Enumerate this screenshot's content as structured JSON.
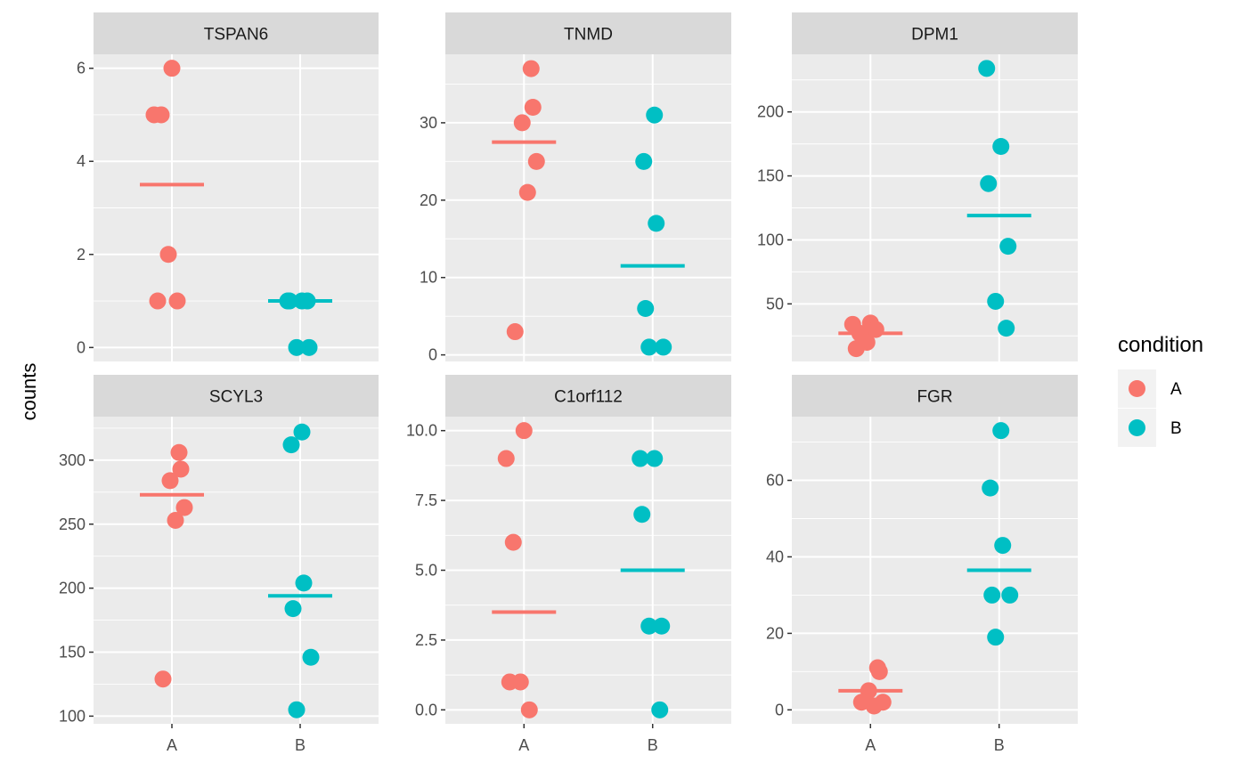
{
  "chart_data": {
    "type": "scatter",
    "ylabel": "counts",
    "categories": [
      "A",
      "B"
    ],
    "legend": {
      "title": "condition",
      "position": "right",
      "entries": [
        {
          "label": "A",
          "color": "#F8766D"
        },
        {
          "label": "B",
          "color": "#00BFC4"
        }
      ]
    },
    "panels": [
      {
        "title": "TSPAN6",
        "ylim": [
          -0.3,
          6.3
        ],
        "yticks": [
          0,
          2,
          4,
          6
        ],
        "ytick_labels": [
          "0",
          "2",
          "4",
          "6"
        ],
        "groups": [
          {
            "name": "A",
            "values": [
              6,
              5,
              5,
              2,
              1,
              1
            ],
            "mean": 3.5
          },
          {
            "name": "B",
            "values": [
              1,
              1,
              1,
              0,
              0,
              1
            ],
            "mean": 1
          }
        ]
      },
      {
        "title": "TNMD",
        "ylim": [
          -0.85,
          38.85
        ],
        "yticks": [
          0,
          10,
          20,
          30
        ],
        "ytick_labels": [
          "0",
          "10",
          "20",
          "30"
        ],
        "groups": [
          {
            "name": "A",
            "values": [
              37,
              32,
              30,
              25,
              21,
              3
            ],
            "mean": 27.5
          },
          {
            "name": "B",
            "values": [
              31,
              25,
              17,
              6,
              1,
              1
            ],
            "mean": 11.5
          }
        ]
      },
      {
        "title": "DPM1",
        "ylim": [
          5,
          245
        ],
        "yticks": [
          50,
          100,
          150,
          200
        ],
        "ytick_labels": [
          "50",
          "100",
          "150",
          "200"
        ],
        "groups": [
          {
            "name": "A",
            "values": [
              35,
              34,
              27,
              20,
              15,
              30
            ],
            "mean": 27
          },
          {
            "name": "B",
            "values": [
              234,
              173,
              144,
              95,
              52,
              31
            ],
            "mean": 119
          }
        ]
      },
      {
        "title": "SCYL3",
        "ylim": [
          94,
          334
        ],
        "yticks": [
          100,
          150,
          200,
          250,
          300
        ],
        "ytick_labels": [
          "100",
          "150",
          "200",
          "250",
          "300"
        ],
        "groups": [
          {
            "name": "A",
            "values": [
              306,
              293,
              284,
              263,
              253,
              129
            ],
            "mean": 273
          },
          {
            "name": "B",
            "values": [
              322,
              312,
              204,
              184,
              146,
              105
            ],
            "mean": 194
          }
        ]
      },
      {
        "title": "C1orf112",
        "ylim": [
          -0.5,
          10.5
        ],
        "yticks": [
          0,
          2.5,
          5,
          7.5,
          10
        ],
        "ytick_labels": [
          "0.0",
          "2.5",
          "5.0",
          "7.5",
          "10.0"
        ],
        "groups": [
          {
            "name": "A",
            "values": [
              10,
              9,
              6,
              1,
              1,
              0
            ],
            "mean": 3.5
          },
          {
            "name": "B",
            "values": [
              9,
              9,
              7,
              3,
              3,
              0
            ],
            "mean": 5
          }
        ]
      },
      {
        "title": "FGR",
        "ylim": [
          -3.65,
          76.65
        ],
        "yticks": [
          0,
          20,
          40,
          60
        ],
        "ytick_labels": [
          "0",
          "20",
          "40",
          "60"
        ],
        "groups": [
          {
            "name": "A",
            "values": [
              11,
              10,
              5,
              2,
              1,
              2
            ],
            "mean": 5
          },
          {
            "name": "B",
            "values": [
              73,
              58,
              43,
              30,
              30,
              19
            ],
            "mean": 36.5
          }
        ]
      }
    ]
  }
}
